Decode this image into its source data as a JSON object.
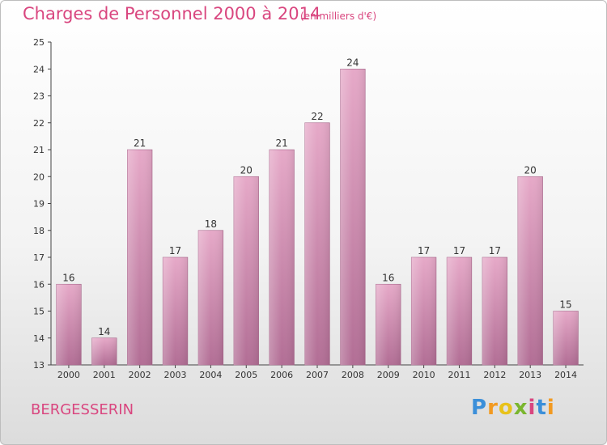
{
  "header": {
    "title": "Charges de Personnel 2000 à 2014",
    "subtitle": "(en milliers d'€)"
  },
  "footer": {
    "commune": "BERGESSERIN",
    "logo_text": "Proxiti"
  },
  "colors": {
    "accent": "#d9467f",
    "bar_top": "#e6a9c8",
    "bar_bottom": "#b26e95"
  },
  "chart_data": {
    "type": "bar",
    "title": "Charges de Personnel 2000 à 2014",
    "subtitle": "(en milliers d'€)",
    "categories": [
      "2000",
      "2001",
      "2002",
      "2003",
      "2004",
      "2005",
      "2006",
      "2007",
      "2008",
      "2009",
      "2010",
      "2011",
      "2012",
      "2013",
      "2014"
    ],
    "values": [
      16,
      14,
      21,
      17,
      18,
      20,
      21,
      22,
      24,
      16,
      17,
      17,
      17,
      20,
      15
    ],
    "ylim": [
      13,
      25
    ],
    "yticks": [
      13,
      14,
      15,
      16,
      17,
      18,
      19,
      20,
      21,
      22,
      23,
      24,
      25
    ],
    "grid": false,
    "legend": "none"
  }
}
